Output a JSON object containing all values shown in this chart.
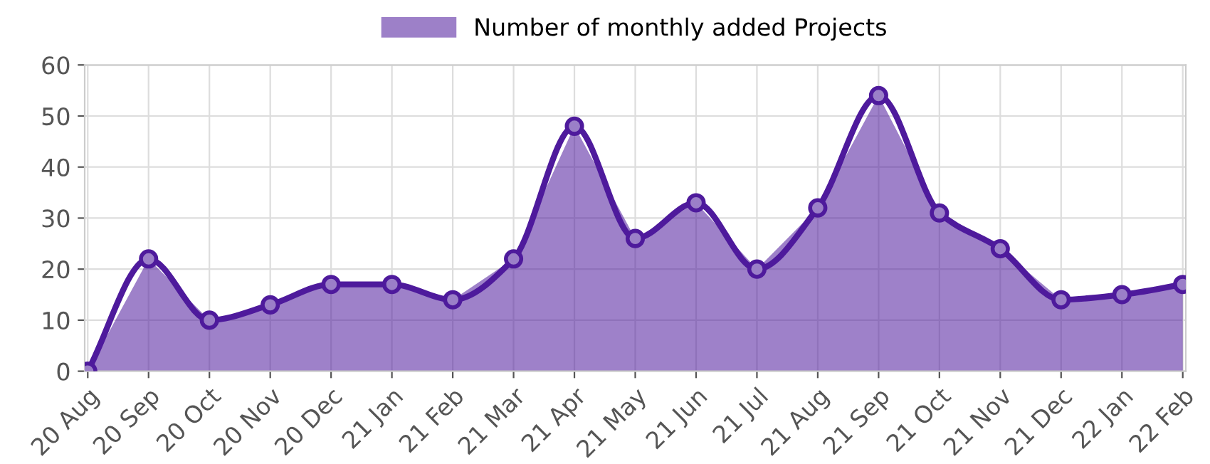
{
  "chart_data": {
    "type": "area",
    "categories": [
      "20 Aug",
      "20 Sep",
      "20 Oct",
      "20 Nov",
      "20 Dec",
      "21 Jan",
      "21 Feb",
      "21 Mar",
      "21 Apr",
      "21 May",
      "21 Jun",
      "21 Jul",
      "21 Aug",
      "21 Sep",
      "21 Oct",
      "21 Nov",
      "21 Dec",
      "22 Jan",
      "22 Feb"
    ],
    "series": [
      {
        "name": "Number of monthly added Projects",
        "color": "#4e1a9c",
        "values": [
          0,
          22,
          10,
          13,
          17,
          17,
          14,
          22,
          48,
          26,
          33,
          20,
          32,
          54,
          31,
          24,
          14,
          15,
          17
        ]
      }
    ],
    "ylim": [
      0,
      60
    ],
    "yticks": [
      0,
      10,
      20,
      30,
      40,
      50,
      60
    ],
    "grid": true,
    "legend": "top",
    "marker": "circle"
  }
}
